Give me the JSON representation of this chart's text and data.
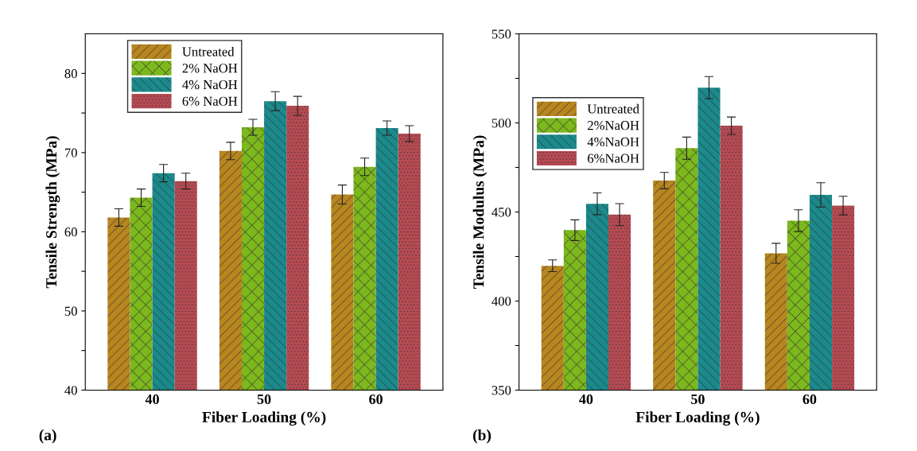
{
  "chart_data": [
    {
      "type": "bar",
      "ylabel": "Tensile Strength (MPa)",
      "xlabel": "Fiber Loading (%)",
      "categories": [
        "40",
        "50",
        "60"
      ],
      "series": [
        {
          "name": "Untreated",
          "color": "#b8861f",
          "values": [
            61.8,
            70.2,
            64.7
          ],
          "errors": [
            1.1,
            1.1,
            1.2
          ]
        },
        {
          "name": "2% NaOH",
          "color": "#7db81c",
          "values": [
            64.3,
            73.2,
            68.2
          ],
          "errors": [
            1.1,
            1.0,
            1.1
          ]
        },
        {
          "name": "4% NaOH",
          "color": "#1b8a8c",
          "values": [
            67.4,
            76.5,
            73.1
          ],
          "errors": [
            1.1,
            1.2,
            0.9
          ]
        },
        {
          "name": "6% NaOH",
          "color": "#b84a52",
          "values": [
            66.4,
            75.9,
            72.4
          ],
          "errors": [
            1.0,
            1.2,
            1.0
          ]
        }
      ],
      "ylim": [
        40,
        85
      ],
      "yticks": [
        40,
        {
          "value": 45,
          "label": null
        },
        50,
        {
          "value": 55,
          "label": null
        },
        60,
        {
          "value": 65,
          "label": null
        },
        70,
        {
          "value": 75,
          "label": null
        },
        80
      ],
      "legend": "top left",
      "grid": false,
      "annotations": [
        "(a)"
      ]
    },
    {
      "type": "bar",
      "ylabel": "Tensile Modulus (MPa)",
      "xlabel": "Fiber Loading (%)",
      "categories": [
        "40",
        "50",
        "60"
      ],
      "series": [
        {
          "name": "Untreated",
          "color": "#b8861f",
          "values": [
            419.8,
            467.6,
            426.8
          ],
          "errors": [
            3.3,
            4.6,
            5.6
          ]
        },
        {
          "name": "2%NaOH",
          "color": "#7db81c",
          "values": [
            439.8,
            485.8,
            445.1
          ],
          "errors": [
            5.8,
            6.2,
            6.1
          ]
        },
        {
          "name": "4%NaOH",
          "color": "#1b8a8c",
          "values": [
            454.6,
            519.8,
            459.6
          ],
          "errors": [
            6.1,
            6.2,
            6.8
          ]
        },
        {
          "name": "6%NaOH",
          "color": "#b84a52",
          "values": [
            448.5,
            498.4,
            453.6
          ],
          "errors": [
            6.2,
            4.9,
            5.2
          ]
        }
      ],
      "ylim": [
        350,
        550
      ],
      "yticks": [
        350,
        {
          "value": 375,
          "label": null
        },
        400,
        {
          "value": 425,
          "label": null
        },
        450,
        {
          "value": 475,
          "label": null
        },
        500,
        {
          "value": 525,
          "label": null
        },
        550
      ],
      "legend": "left",
      "grid": false,
      "annotations": [
        "(b)"
      ]
    }
  ]
}
